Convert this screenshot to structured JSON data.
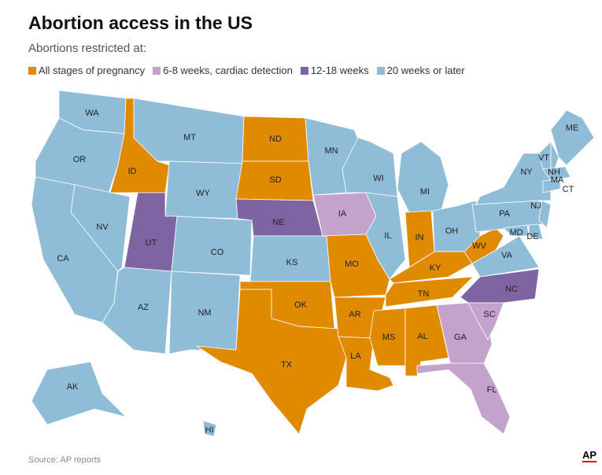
{
  "title": "Abortion access in the US",
  "subtitle": "Abortions restricted at:",
  "legend": [
    {
      "key": "all",
      "label": "All stages of pregnancy",
      "color": "#e08a00"
    },
    {
      "key": "early",
      "label": "6-8 weeks, cardiac detection",
      "color": "#c3a2cb"
    },
    {
      "key": "mid",
      "label": "12-18 weeks",
      "color": "#7e64a3"
    },
    {
      "key": "late",
      "label": "20 weeks or later",
      "color": "#8fbcd6"
    }
  ],
  "states": [
    {
      "abbr": "WA",
      "cat": "late"
    },
    {
      "abbr": "OR",
      "cat": "late"
    },
    {
      "abbr": "CA",
      "cat": "late"
    },
    {
      "abbr": "NV",
      "cat": "late"
    },
    {
      "abbr": "ID",
      "cat": "all"
    },
    {
      "abbr": "MT",
      "cat": "late"
    },
    {
      "abbr": "WY",
      "cat": "late"
    },
    {
      "abbr": "UT",
      "cat": "mid"
    },
    {
      "abbr": "AZ",
      "cat": "late"
    },
    {
      "abbr": "CO",
      "cat": "late"
    },
    {
      "abbr": "NM",
      "cat": "late"
    },
    {
      "abbr": "ND",
      "cat": "all"
    },
    {
      "abbr": "SD",
      "cat": "all"
    },
    {
      "abbr": "NE",
      "cat": "mid"
    },
    {
      "abbr": "KS",
      "cat": "late"
    },
    {
      "abbr": "OK",
      "cat": "all"
    },
    {
      "abbr": "TX",
      "cat": "all"
    },
    {
      "abbr": "MN",
      "cat": "late"
    },
    {
      "abbr": "IA",
      "cat": "early"
    },
    {
      "abbr": "MO",
      "cat": "all"
    },
    {
      "abbr": "AR",
      "cat": "all"
    },
    {
      "abbr": "LA",
      "cat": "all"
    },
    {
      "abbr": "WI",
      "cat": "late"
    },
    {
      "abbr": "IL",
      "cat": "late"
    },
    {
      "abbr": "MI",
      "cat": "late"
    },
    {
      "abbr": "IN",
      "cat": "all"
    },
    {
      "abbr": "OH",
      "cat": "late"
    },
    {
      "abbr": "KY",
      "cat": "all"
    },
    {
      "abbr": "TN",
      "cat": "all"
    },
    {
      "abbr": "MS",
      "cat": "all"
    },
    {
      "abbr": "AL",
      "cat": "all"
    },
    {
      "abbr": "GA",
      "cat": "early"
    },
    {
      "abbr": "FL",
      "cat": "early"
    },
    {
      "abbr": "SC",
      "cat": "early"
    },
    {
      "abbr": "NC",
      "cat": "mid"
    },
    {
      "abbr": "VA",
      "cat": "late"
    },
    {
      "abbr": "WV",
      "cat": "all"
    },
    {
      "abbr": "PA",
      "cat": "late"
    },
    {
      "abbr": "NY",
      "cat": "late"
    },
    {
      "abbr": "ME",
      "cat": "late"
    },
    {
      "abbr": "VT",
      "cat": "late"
    },
    {
      "abbr": "NH",
      "cat": "late"
    },
    {
      "abbr": "MA",
      "cat": "late"
    },
    {
      "abbr": "CT",
      "cat": "late"
    },
    {
      "abbr": "NJ",
      "cat": "late"
    },
    {
      "abbr": "MD",
      "cat": "late"
    },
    {
      "abbr": "DE",
      "cat": "late"
    },
    {
      "abbr": "AK",
      "cat": "late"
    },
    {
      "abbr": "HI",
      "cat": "late"
    }
  ],
  "source": "Source: AP reports",
  "logo": "AP"
}
